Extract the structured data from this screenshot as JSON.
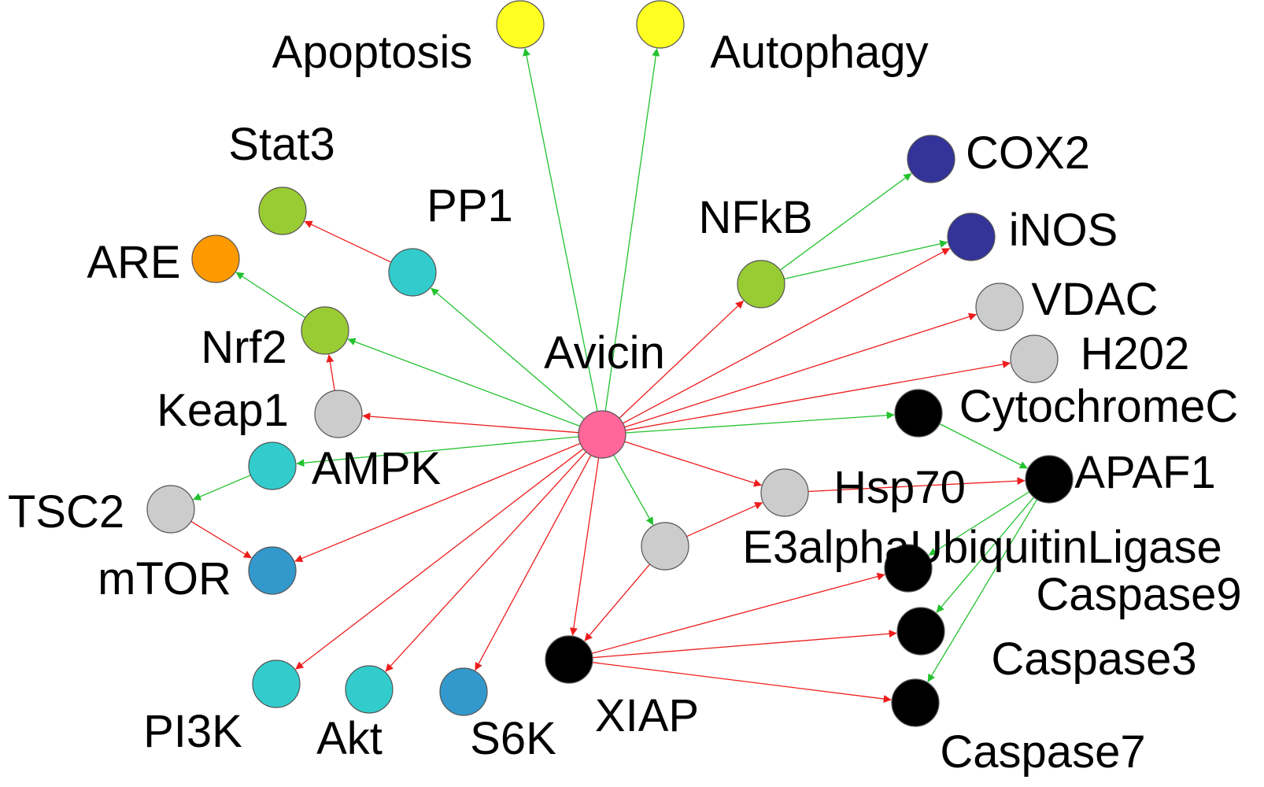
{
  "diagram": {
    "edge_colors": {
      "activation": "#22c22e",
      "inhibition": "#ee1c1c"
    },
    "nodes": [
      {
        "id": "Avicin",
        "label": "Avicin",
        "color": "#ff6699"
      },
      {
        "id": "Apoptosis",
        "label": "Apoptosis",
        "color": "#ffff22"
      },
      {
        "id": "Autophagy",
        "label": "Autophagy",
        "color": "#ffff22"
      },
      {
        "id": "Stat3",
        "label": "Stat3",
        "color": "#99cc33"
      },
      {
        "id": "PP1",
        "label": "PP1",
        "color": "#33cccc"
      },
      {
        "id": "ARE",
        "label": "ARE",
        "color": "#ff9900"
      },
      {
        "id": "Nrf2",
        "label": "Nrf2",
        "color": "#99cc33"
      },
      {
        "id": "Keap1",
        "label": "Keap1",
        "color": "#cccccc"
      },
      {
        "id": "AMPK",
        "label": "AMPK",
        "color": "#33cccc"
      },
      {
        "id": "TSC2",
        "label": "TSC2",
        "color": "#cccccc"
      },
      {
        "id": "mTOR",
        "label": "mTOR",
        "color": "#3399cc"
      },
      {
        "id": "PI3K",
        "label": "PI3K",
        "color": "#33cccc"
      },
      {
        "id": "Akt",
        "label": "Akt",
        "color": "#33cccc"
      },
      {
        "id": "S6K",
        "label": "S6K",
        "color": "#3399cc"
      },
      {
        "id": "XIAP",
        "label": "XIAP",
        "color": "#000000"
      },
      {
        "id": "E3alpha",
        "label": "E3alphaUbiquitinLigase",
        "color": "#cccccc"
      },
      {
        "id": "Hsp70",
        "label": "Hsp70",
        "color": "#cccccc"
      },
      {
        "id": "NFkB",
        "label": "NFkB",
        "color": "#99cc33"
      },
      {
        "id": "COX2",
        "label": "COX2",
        "color": "#333399"
      },
      {
        "id": "iNOS",
        "label": "iNOS",
        "color": "#333399"
      },
      {
        "id": "VDAC",
        "label": "VDAC",
        "color": "#cccccc"
      },
      {
        "id": "H202",
        "label": "H202",
        "color": "#cccccc"
      },
      {
        "id": "CytochromeC",
        "label": "CytochromeC",
        "color": "#000000"
      },
      {
        "id": "APAF1",
        "label": "APAF1",
        "color": "#000000"
      },
      {
        "id": "Caspase9",
        "label": "Caspase9",
        "color": "#000000"
      },
      {
        "id": "Caspase3",
        "label": "Caspase3",
        "color": "#000000"
      },
      {
        "id": "Caspase7",
        "label": "Caspase7",
        "color": "#000000"
      }
    ],
    "edges": [
      {
        "from": "Avicin",
        "to": "Apoptosis",
        "type": "activation"
      },
      {
        "from": "Avicin",
        "to": "Autophagy",
        "type": "activation"
      },
      {
        "from": "Avicin",
        "to": "PP1",
        "type": "activation"
      },
      {
        "from": "Avicin",
        "to": "Nrf2",
        "type": "activation"
      },
      {
        "from": "Avicin",
        "to": "Keap1",
        "type": "inhibition"
      },
      {
        "from": "Avicin",
        "to": "AMPK",
        "type": "activation"
      },
      {
        "from": "Avicin",
        "to": "mTOR",
        "type": "inhibition"
      },
      {
        "from": "Avicin",
        "to": "PI3K",
        "type": "inhibition"
      },
      {
        "from": "Avicin",
        "to": "Akt",
        "type": "inhibition"
      },
      {
        "from": "Avicin",
        "to": "S6K",
        "type": "inhibition"
      },
      {
        "from": "Avicin",
        "to": "XIAP",
        "type": "inhibition"
      },
      {
        "from": "Avicin",
        "to": "E3alpha",
        "type": "activation"
      },
      {
        "from": "Avicin",
        "to": "Hsp70",
        "type": "inhibition"
      },
      {
        "from": "Avicin",
        "to": "NFkB",
        "type": "inhibition"
      },
      {
        "from": "Avicin",
        "to": "iNOS",
        "type": "inhibition"
      },
      {
        "from": "Avicin",
        "to": "VDAC",
        "type": "inhibition"
      },
      {
        "from": "Avicin",
        "to": "H202",
        "type": "inhibition"
      },
      {
        "from": "Avicin",
        "to": "CytochromeC",
        "type": "activation"
      },
      {
        "from": "PP1",
        "to": "Stat3",
        "type": "inhibition"
      },
      {
        "from": "Nrf2",
        "to": "ARE",
        "type": "activation"
      },
      {
        "from": "Keap1",
        "to": "Nrf2",
        "type": "inhibition"
      },
      {
        "from": "AMPK",
        "to": "TSC2",
        "type": "activation"
      },
      {
        "from": "TSC2",
        "to": "mTOR",
        "type": "inhibition"
      },
      {
        "from": "NFkB",
        "to": "COX2",
        "type": "activation"
      },
      {
        "from": "NFkB",
        "to": "iNOS",
        "type": "activation"
      },
      {
        "from": "CytochromeC",
        "to": "APAF1",
        "type": "activation"
      },
      {
        "from": "Hsp70",
        "to": "APAF1",
        "type": "inhibition"
      },
      {
        "from": "E3alpha",
        "to": "XIAP",
        "type": "inhibition"
      },
      {
        "from": "E3alpha",
        "to": "Hsp70",
        "type": "inhibition"
      },
      {
        "from": "APAF1",
        "to": "Caspase9",
        "type": "activation"
      },
      {
        "from": "APAF1",
        "to": "Caspase3",
        "type": "activation"
      },
      {
        "from": "APAF1",
        "to": "Caspase7",
        "type": "activation"
      },
      {
        "from": "XIAP",
        "to": "Caspase9",
        "type": "inhibition"
      },
      {
        "from": "XIAP",
        "to": "Caspase3",
        "type": "inhibition"
      },
      {
        "from": "XIAP",
        "to": "Caspase7",
        "type": "inhibition"
      }
    ]
  }
}
